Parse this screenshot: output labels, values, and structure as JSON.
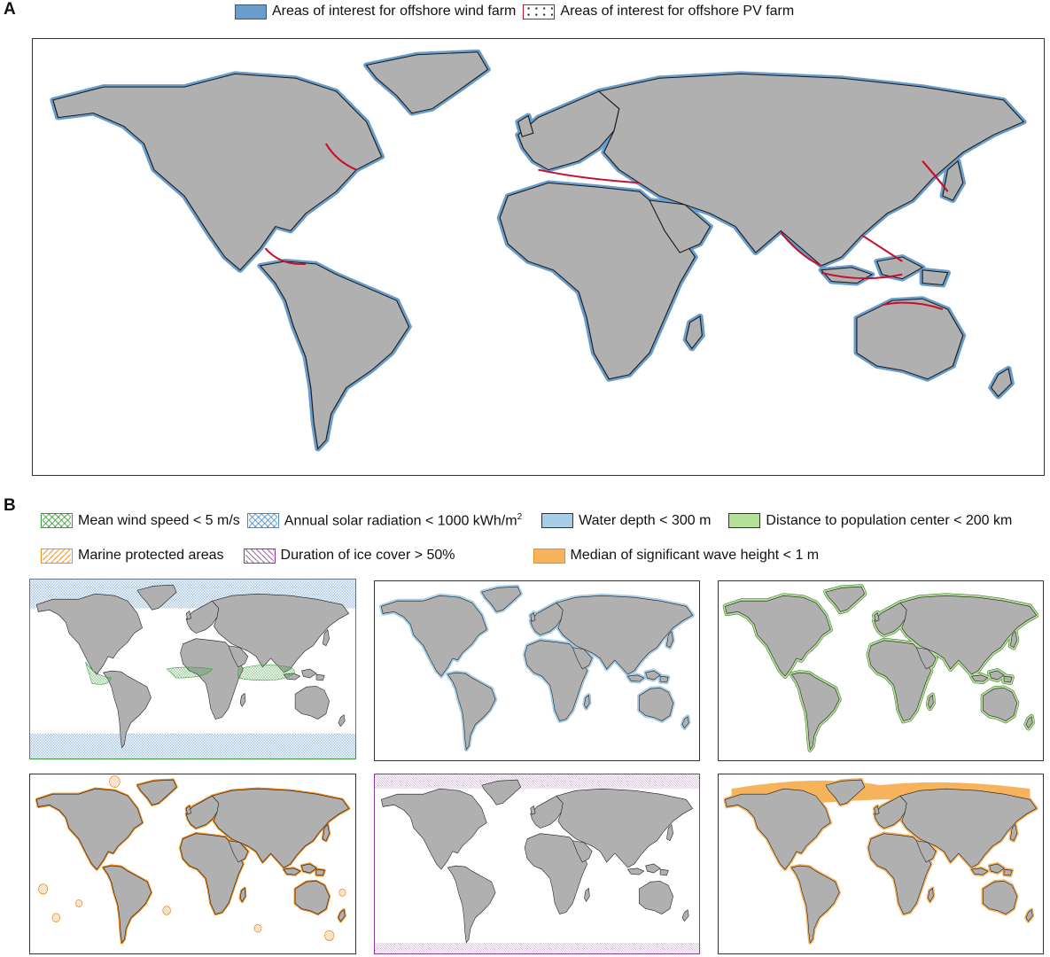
{
  "panel_a": {
    "letter": "A",
    "legend": [
      {
        "label": "Areas of interest for offshore wind farm",
        "swatch": "wind",
        "color": "#6a9dcb"
      },
      {
        "label": "Areas of interest for offshore PV farm",
        "swatch": "pv",
        "color": "#c8102e"
      }
    ]
  },
  "panel_b": {
    "letter": "B",
    "legend": [
      {
        "label": "Mean wind speed < 5 m/s",
        "swatch": "wind-hatch",
        "color": "#3a9a3a"
      },
      {
        "label": "Annual solar radiation < 1000 kWh/m",
        "sup": "2",
        "swatch": "solar-hatch",
        "color": "#4a8ac8"
      },
      {
        "label": "Water depth < 300 m",
        "swatch": "depth",
        "color": "#a8cde6"
      },
      {
        "label": "Distance to population center < 200 km",
        "swatch": "pop",
        "color": "#b7e09a"
      },
      {
        "label": "Marine protected areas",
        "swatch": "mpa",
        "color": "#f08c1e"
      },
      {
        "label": "Duration of ice cover > 50%",
        "swatch": "ice",
        "color": "#8a3a9a"
      },
      {
        "label": "Median of significant wave height < 1 m",
        "swatch": "wave",
        "color": "#f7b35c"
      }
    ]
  },
  "colors": {
    "land": "#b0b0b0",
    "coast": "#1a1a1a",
    "frame": "#333333"
  }
}
